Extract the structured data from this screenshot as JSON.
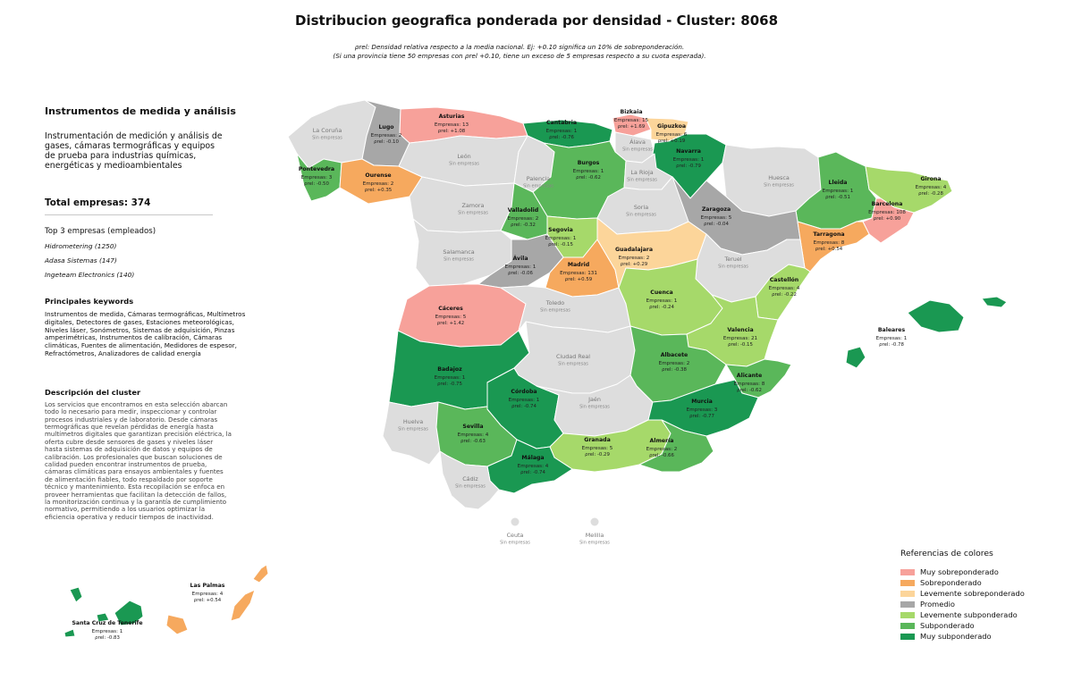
{
  "title": "Distribucion geografica ponderada por densidad - Cluster: 8068",
  "subtitle_line1": "ρrel: Densidad relativa respecto a la media nacional. Ej: +0.10 significa un 10% de sobreponderación.",
  "subtitle_line2": "(Si una provincia tiene 50 empresas con ρrel +0.10, tiene un exceso de 5 empresas respecto a su cuota esperada).",
  "panel": {
    "cluster_title": "Instrumentos de medida y análisis",
    "cluster_desc": "Instrumentación de medición y análisis de gases, cámaras termográficas y equipos de prueba para industrias químicas, energéticas y medioambientales",
    "total": "Total empresas: 374",
    "top3_title": "Top 3 empresas (empleados)",
    "top3": [
      "Hidrometering (1250)",
      "Adasa Sistemas (147)",
      "Ingeteam Electronics (140)"
    ],
    "keywords_title": "Principales keywords",
    "keywords": "Instrumentos de medida, Cámaras termográficas, Multímetros digitales, Detectores de gases, Estaciones meteorológicas, Niveles láser, Sonómetros, Sistemas de adquisición, Pinzas amperimétricas, Instrumentos de calibración, Cámaras climáticas, Fuentes de alimentación, Medidores de espesor, Refractómetros, Analizadores de calidad energía",
    "desc_title": "Descripción del cluster",
    "desc": "Los servicios que encontramos en esta selección abarcan todo lo necesario para medir, inspeccionar y controlar procesos industriales y de laboratorio. Desde cámaras termográficas que revelan pérdidas de energía hasta multímetros digitales que garantizan precisión eléctrica, la oferta cubre desde sensores de gases y niveles láser hasta sistemas de adquisición de datos y equipos de calibración. Los profesionales que buscan soluciones de calidad pueden encontrar instrumentos de prueba, cámaras climáticas para ensayos ambientales y fuentes de alimentación fiables, todo respaldado por soporte técnico y mantenimiento. Esta recopilación se enfoca en proveer herramientas que facilitan la detección de fallos, la monitorización continua y la garantía de cumplimiento normativo, permitiendo a los usuarios optimizar la eficiencia operativa y reducir tiempos de inactividad."
  },
  "colors": {
    "muy_sobre": "#f7a19a",
    "sobre": "#f6a95e",
    "lev_sobre": "#fcd59a",
    "promedio": "#a7a7a7",
    "lev_sub": "#a6d96a",
    "sub": "#5ab75a",
    "muy_sub": "#1a9852",
    "sin": "#dddddd"
  },
  "legend": {
    "title": "Referencias de colores",
    "items": [
      {
        "label": "Muy sobreponderado",
        "color": "#f7a19a"
      },
      {
        "label": "Sobreponderado",
        "color": "#f6a95e"
      },
      {
        "label": "Levemente sobreponderado",
        "color": "#fcd59a"
      },
      {
        "label": "Promedio",
        "color": "#a7a7a7"
      },
      {
        "label": "Levemente subponderado",
        "color": "#a6d96a"
      },
      {
        "label": "Subponderado",
        "color": "#5ab75a"
      },
      {
        "label": "Muy subponderado",
        "color": "#1a9852"
      }
    ]
  },
  "provinces": [
    {
      "name": "La Coruña",
      "cat": "sin",
      "line1": "Sin empresas",
      "line2": ""
    },
    {
      "name": "Lugo",
      "cat": "promedio",
      "line1": "Empresas: 2",
      "line2": "ρrel: -0.10"
    },
    {
      "name": "Asturias",
      "cat": "muy_sobre",
      "line1": "Empresas: 13",
      "line2": "ρrel: +1.08"
    },
    {
      "name": "Cantabria",
      "cat": "muy_sub",
      "line1": "Empresas: 1",
      "line2": "ρrel: -0.76"
    },
    {
      "name": "Bizkaia",
      "cat": "muy_sobre",
      "line1": "Empresas: 15",
      "line2": "ρrel: +1.69"
    },
    {
      "name": "Gipuzkoa",
      "cat": "lev_sobre",
      "line1": "Empresas: 6",
      "line2": "ρrel: +0.19"
    },
    {
      "name": "Álava",
      "cat": "sin",
      "line1": "Sin empresas",
      "line2": ""
    },
    {
      "name": "Navarra",
      "cat": "muy_sub",
      "line1": "Empresas: 1",
      "line2": "ρrel: -0.79"
    },
    {
      "name": "Pontevedra",
      "cat": "sub",
      "line1": "Empresas: 3",
      "line2": "ρrel: -0.50"
    },
    {
      "name": "Ourense",
      "cat": "sobre",
      "line1": "Empresas: 2",
      "line2": "ρrel: +0.35"
    },
    {
      "name": "León",
      "cat": "sin",
      "line1": "Sin empresas",
      "line2": ""
    },
    {
      "name": "Palencia",
      "cat": "sin",
      "line1": "Sin empresas",
      "line2": ""
    },
    {
      "name": "Burgos",
      "cat": "sub",
      "line1": "Empresas: 1",
      "line2": "ρrel: -0.62"
    },
    {
      "name": "La Rioja",
      "cat": "sin",
      "line1": "Sin empresas",
      "line2": ""
    },
    {
      "name": "Huesca",
      "cat": "sin",
      "line1": "Sin empresas",
      "line2": ""
    },
    {
      "name": "Lleida",
      "cat": "sub",
      "line1": "Empresas: 1",
      "line2": "ρrel: -0.51"
    },
    {
      "name": "Girona",
      "cat": "lev_sub",
      "line1": "Empresas: 4",
      "line2": "ρrel: -0.28"
    },
    {
      "name": "Barcelona",
      "cat": "muy_sobre",
      "line1": "Empresas: 108",
      "line2": "ρrel: +0.90"
    },
    {
      "name": "Zamora",
      "cat": "sin",
      "line1": "Sin empresas",
      "line2": ""
    },
    {
      "name": "Valladolid",
      "cat": "sub",
      "line1": "Empresas: 2",
      "line2": "ρrel: -0.32"
    },
    {
      "name": "Soria",
      "cat": "sin",
      "line1": "Sin empresas",
      "line2": ""
    },
    {
      "name": "Zaragoza",
      "cat": "promedio",
      "line1": "Empresas: 5",
      "line2": "ρrel: -0.04"
    },
    {
      "name": "Tarragona",
      "cat": "sobre",
      "line1": "Empresas: 8",
      "line2": "ρrel: +0.54"
    },
    {
      "name": "Salamanca",
      "cat": "sin",
      "line1": "Sin empresas",
      "line2": ""
    },
    {
      "name": "Segovia",
      "cat": "lev_sub",
      "line1": "Empresas: 1",
      "line2": "ρrel: -0.15"
    },
    {
      "name": "Ávila",
      "cat": "promedio",
      "line1": "Empresas: 1",
      "line2": "ρrel: -0.06"
    },
    {
      "name": "Madrid",
      "cat": "sobre",
      "line1": "Empresas: 131",
      "line2": "ρrel: +0.59"
    },
    {
      "name": "Guadalajara",
      "cat": "lev_sobre",
      "line1": "Empresas: 2",
      "line2": "ρrel: +0.29"
    },
    {
      "name": "Teruel",
      "cat": "sin",
      "line1": "Sin empresas",
      "line2": ""
    },
    {
      "name": "Castellón",
      "cat": "lev_sub",
      "line1": "Empresas: 4",
      "line2": "ρrel: -0.22"
    },
    {
      "name": "Cáceres",
      "cat": "muy_sobre",
      "line1": "Empresas: 5",
      "line2": "ρrel: +1.42"
    },
    {
      "name": "Toledo",
      "cat": "sin",
      "line1": "Sin empresas",
      "line2": ""
    },
    {
      "name": "Cuenca",
      "cat": "lev_sub",
      "line1": "Empresas: 1",
      "line2": "ρrel: -0.24"
    },
    {
      "name": "Valencia",
      "cat": "lev_sub",
      "line1": "Empresas: 21",
      "line2": "ρrel: -0.15"
    },
    {
      "name": "Baleares",
      "cat": "muy_sub",
      "line1": "Empresas: 1",
      "line2": "ρrel: -0.78"
    },
    {
      "name": "Badajoz",
      "cat": "muy_sub",
      "line1": "Empresas: 1",
      "line2": "ρrel: -0.75"
    },
    {
      "name": "Ciudad Real",
      "cat": "sin",
      "line1": "Sin empresas",
      "line2": ""
    },
    {
      "name": "Albacete",
      "cat": "sub",
      "line1": "Empresas: 2",
      "line2": "ρrel: -0.38"
    },
    {
      "name": "Alicante",
      "cat": "sub",
      "line1": "Empresas: 8",
      "line2": "ρrel: -0.62"
    },
    {
      "name": "Córdoba",
      "cat": "muy_sub",
      "line1": "Empresas: 1",
      "line2": "ρrel: -0.74"
    },
    {
      "name": "Jaén",
      "cat": "sin",
      "line1": "Sin empresas",
      "line2": ""
    },
    {
      "name": "Murcia",
      "cat": "muy_sub",
      "line1": "Empresas: 3",
      "line2": "ρrel: -0.77"
    },
    {
      "name": "Huelva",
      "cat": "sin",
      "line1": "Sin empresas",
      "line2": ""
    },
    {
      "name": "Sevilla",
      "cat": "sub",
      "line1": "Empresas: 4",
      "line2": "ρrel: -0.63"
    },
    {
      "name": "Granada",
      "cat": "lev_sub",
      "line1": "Empresas: 5",
      "line2": "ρrel: -0.29"
    },
    {
      "name": "Almería",
      "cat": "sub",
      "line1": "Empresas: 2",
      "line2": "ρrel: -0.66"
    },
    {
      "name": "Málaga",
      "cat": "muy_sub",
      "line1": "Empresas: 4",
      "line2": "ρrel: -0.74"
    },
    {
      "name": "Cádiz",
      "cat": "sin",
      "line1": "Sin empresas",
      "line2": ""
    },
    {
      "name": "Ceuta",
      "cat": "sin",
      "line1": "Sin empresas",
      "line2": ""
    },
    {
      "name": "Melilla",
      "cat": "sin",
      "line1": "Sin empresas",
      "line2": ""
    },
    {
      "name": "Las Palmas",
      "cat": "sobre",
      "line1": "Empresas: 4",
      "line2": "ρrel: +0.54"
    },
    {
      "name": "Santa Cruz de Tenerife",
      "cat": "muy_sub",
      "line1": "Empresas: 1",
      "line2": "ρrel: -0.83"
    }
  ]
}
